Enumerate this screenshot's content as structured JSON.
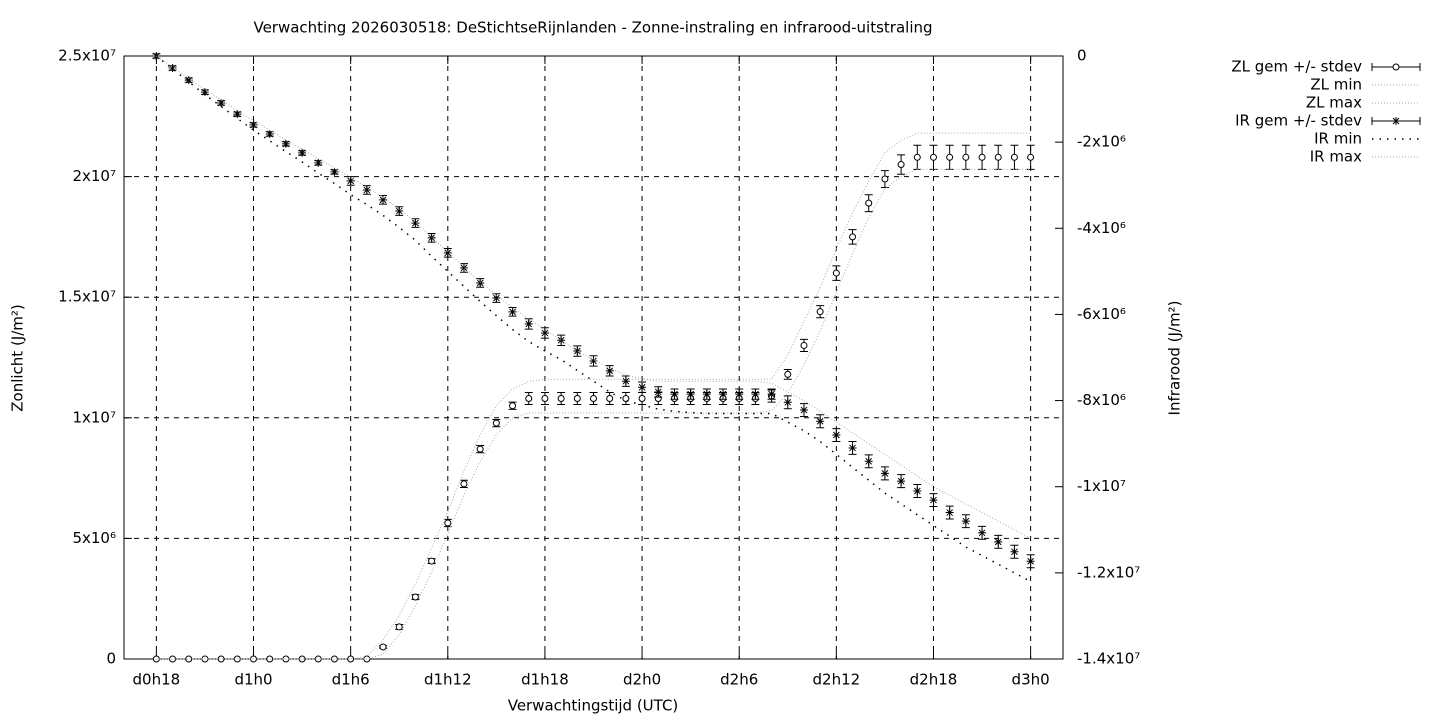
{
  "chart_data": {
    "type": "errorbar-line",
    "title": "Verwachting 2026030518: DeStichtseRijnlanden - Zonne-instraling en infrarood-uitstraling",
    "x_label": "Verwachtingstijd (UTC)",
    "y_label": "Zonlicht (J/m²)",
    "y2_label": "Infrarood (J/m²)",
    "xlim": [
      16,
      74
    ],
    "ylim": [
      0,
      25000000
    ],
    "y2lim": [
      -14000000,
      0
    ],
    "xticks": [
      {
        "value": 18,
        "label": "d0h18"
      },
      {
        "value": 24,
        "label": "d1h0"
      },
      {
        "value": 30,
        "label": "d1h6"
      },
      {
        "value": 36,
        "label": "d1h12"
      },
      {
        "value": 42,
        "label": "d1h18"
      },
      {
        "value": 48,
        "label": "d2h0"
      },
      {
        "value": 54,
        "label": "d2h6"
      },
      {
        "value": 60,
        "label": "d2h12"
      },
      {
        "value": 66,
        "label": "d2h18"
      },
      {
        "value": 72,
        "label": "d3h0"
      }
    ],
    "yticks": [
      0,
      {
        "value": 5000000,
        "label": "5x10⁶"
      },
      {
        "value": 10000000,
        "label": "1x10⁷"
      },
      {
        "value": 15000000,
        "label": "1.5x10⁷"
      },
      {
        "value": 20000000,
        "label": "2x10⁷"
      },
      {
        "value": 25000000,
        "label": "2.5x10⁷"
      }
    ],
    "y2ticks": [
      0,
      {
        "value": -2000000,
        "label": "-2x10⁶"
      },
      {
        "value": -4000000,
        "label": "-4x10⁶"
      },
      {
        "value": -6000000,
        "label": "-6x10⁶"
      },
      {
        "value": -8000000,
        "label": "-8x10⁶"
      },
      {
        "value": -10000000,
        "label": "-1x10⁷"
      },
      {
        "value": -12000000,
        "label": "-1.2x10⁷"
      },
      {
        "value": -14000000,
        "label": "-1.4x10⁷"
      }
    ],
    "grid": true,
    "legend": "top-right",
    "x": [
      18,
      19,
      20,
      21,
      22,
      23,
      24,
      25,
      26,
      27,
      28,
      29,
      30,
      31,
      32,
      33,
      34,
      35,
      36,
      37,
      38,
      39,
      40,
      41,
      42,
      43,
      44,
      45,
      46,
      47,
      48,
      49,
      50,
      51,
      52,
      53,
      54,
      55,
      56,
      57,
      58,
      59,
      60,
      61,
      62,
      63,
      64,
      65,
      66,
      67,
      68,
      69,
      70,
      71,
      72
    ],
    "series": [
      {
        "name": "ZL gem +/- stdev",
        "color": "#000000",
        "style": "circle",
        "values": [
          0,
          0,
          0,
          0,
          0,
          0,
          0,
          0,
          0,
          0,
          0,
          0,
          0,
          0,
          500000.0,
          1330000.0,
          2570000.0,
          4060000.0,
          5640000.0,
          7260000.0,
          8700000.0,
          9780000.0,
          10500000.0,
          10800000.0,
          10800000.0,
          10800000.0,
          10800000.0,
          10800000.0,
          10800000.0,
          10800000.0,
          10800000.0,
          10800000.0,
          10800000.0,
          10800000.0,
          10800000.0,
          10800000.0,
          10800000.0,
          10800000.0,
          10900000.0,
          11800000.0,
          13000000.0,
          14400000.0,
          16000000.0,
          17500000.0,
          18900000.0,
          19900000.0,
          20500000.0,
          20800000.0,
          20800000.0,
          20800000.0,
          20800000.0,
          20800000.0,
          20800000.0,
          20800000.0,
          20800000.0
        ],
        "errors": [
          0,
          0,
          0,
          0,
          0,
          0,
          0,
          0,
          0,
          0,
          0,
          0,
          0,
          0,
          50000.0,
          100000.0,
          100000.0,
          100000.0,
          150000.0,
          150000.0,
          150000.0,
          150000.0,
          150000.0,
          250000.0,
          250000.0,
          250000.0,
          250000.0,
          250000.0,
          250000.0,
          250000.0,
          250000.0,
          250000.0,
          250000.0,
          250000.0,
          250000.0,
          250000.0,
          250000.0,
          250000.0,
          250000.0,
          200000.0,
          250000.0,
          250000.0,
          300000.0,
          300000.0,
          350000.0,
          350000.0,
          400000.0,
          500000.0,
          500000.0,
          500000.0,
          500000.0,
          500000.0,
          500000.0,
          500000.0,
          500000.0
        ]
      },
      {
        "name": "ZL min",
        "color": "#aaaaaa",
        "style": "fine",
        "values": [
          0,
          0,
          0,
          0,
          0,
          0,
          0,
          0,
          0,
          0,
          0,
          0,
          0,
          0,
          200000.0,
          1000000.0,
          2200000.0,
          3600000.0,
          5200000.0,
          6800000.0,
          8200000.0,
          9300000.0,
          10000000.0,
          10200000.0,
          10200000.0,
          10200000.0,
          10200000.0,
          10200000.0,
          10200000.0,
          10200000.0,
          10200000.0,
          10200000.0,
          10200000.0,
          10200000.0,
          10200000.0,
          10200000.0,
          10200000.0,
          10200000.0,
          10300000.0,
          11000000.0,
          12200000.0,
          13600000.0,
          15200000.0,
          16800000.0,
          18300000.0,
          19500000.0,
          20000000.0,
          20300000.0,
          20300000.0,
          20300000.0,
          20300000.0,
          20300000.0,
          20300000.0,
          20300000.0,
          20300000.0
        ]
      },
      {
        "name": "ZL max",
        "color": "#aaaaaa",
        "style": "fine",
        "values": [
          0,
          0,
          0,
          0,
          0,
          0,
          0,
          0,
          0,
          0,
          0,
          0,
          0,
          100000.0,
          800000.0,
          1800000.0,
          3100000.0,
          4600000.0,
          6100000.0,
          7800000.0,
          9300000.0,
          10500000.0,
          11200000.0,
          11500000.0,
          11600000.0,
          11600000.0,
          11600000.0,
          11600000.0,
          11600000.0,
          11600000.0,
          11600000.0,
          11600000.0,
          11600000.0,
          11600000.0,
          11600000.0,
          11600000.0,
          11600000.0,
          11600000.0,
          11600000.0,
          12600000.0,
          14000000.0,
          15400000.0,
          17000000.0,
          18500000.0,
          19800000.0,
          21000000.0,
          21500000.0,
          21800000.0,
          21800000.0,
          21800000.0,
          21800000.0,
          21800000.0,
          21800000.0,
          21800000.0,
          21800000.0
        ]
      },
      {
        "name": "IR gem +/- stdev",
        "color": "#000000",
        "style": "star",
        "axis": "y2",
        "values": [
          0,
          -280000.0,
          -560000.0,
          -840000.0,
          -1090000.0,
          -1350000.0,
          -1600000.0,
          -1810000.0,
          -2040000.0,
          -2250000.0,
          -2480000.0,
          -2690000.0,
          -2900000.0,
          -3110000.0,
          -3340000.0,
          -3600000.0,
          -3880000.0,
          -4220000.0,
          -4570000.0,
          -4920000.0,
          -5270000.0,
          -5620000.0,
          -5940000.0,
          -6220000.0,
          -6430000.0,
          -6600000.0,
          -6850000.0,
          -7080000.0,
          -7310000.0,
          -7550000.0,
          -7690000.0,
          -7800000.0,
          -7850000.0,
          -7850000.0,
          -7850000.0,
          -7850000.0,
          -7850000.0,
          -7850000.0,
          -7850000.0,
          -8040000.0,
          -8220000.0,
          -8480000.0,
          -8800000.0,
          -9100000.0,
          -9410000.0,
          -9690000.0,
          -9870000.0,
          -10100000.0,
          -10310000.0,
          -10600000.0,
          -10800000.0,
          -11070000.0,
          -11280000.0,
          -11510000.0,
          -11730000.0
        ],
        "errors": [
          50000.0,
          50000.0,
          50000.0,
          50000.0,
          50000.0,
          50000.0,
          50000.0,
          50000.0,
          50000.0,
          50000.0,
          50000.0,
          50000.0,
          100000.0,
          100000.0,
          100000.0,
          100000.0,
          100000.0,
          100000.0,
          100000.0,
          100000.0,
          100000.0,
          100000.0,
          100000.0,
          120000.0,
          120000.0,
          120000.0,
          120000.0,
          120000.0,
          120000.0,
          120000.0,
          120000.0,
          120000.0,
          120000.0,
          120000.0,
          120000.0,
          120000.0,
          120000.0,
          120000.0,
          120000.0,
          150000.0,
          150000.0,
          150000.0,
          150000.0,
          150000.0,
          150000.0,
          150000.0,
          150000.0,
          150000.0,
          150000.0,
          150000.0,
          150000.0,
          150000.0,
          150000.0,
          150000.0,
          150000.0
        ]
      },
      {
        "name": "IR min",
        "color": "#000000",
        "style": "sparse",
        "axis": "y2",
        "values": [
          0,
          -300000.0,
          -600000.0,
          -900000.0,
          -1170000.0,
          -1450000.0,
          -1720000.0,
          -1970000.0,
          -2220000.0,
          -2460000.0,
          -2720000.0,
          -2960000.0,
          -3220000.0,
          -3450000.0,
          -3700000.0,
          -3980000.0,
          -4280000.0,
          -4650000.0,
          -5000000.0,
          -5350000.0,
          -5700000.0,
          -6030000.0,
          -6350000.0,
          -6630000.0,
          -6850000.0,
          -7050000.0,
          -7300000.0,
          -7550000.0,
          -7800000.0,
          -8000000.0,
          -8100000.0,
          -8200000.0,
          -8250000.0,
          -8280000.0,
          -8300000.0,
          -8300000.0,
          -8300000.0,
          -8300000.0,
          -8300000.0,
          -8500000.0,
          -8700000.0,
          -8950000.0,
          -9250000.0,
          -9550000.0,
          -9850000.0,
          -10150000.0,
          -10400000.0,
          -10650000.0,
          -10900000.0,
          -11150000.0,
          -11400000.0,
          -11600000.0,
          -11800000.0,
          -12000000.0,
          -12200000.0
        ]
      },
      {
        "name": "IR max",
        "color": "#aaaaaa",
        "style": "fine",
        "axis": "y2",
        "values": [
          0,
          -260000.0,
          -520000.0,
          -780000.0,
          -1020000.0,
          -1270000.0,
          -1500000.0,
          -1720000.0,
          -1950000.0,
          -2160000.0,
          -2380000.0,
          -2600000.0,
          -2820000.0,
          -3040000.0,
          -3280000.0,
          -3550000.0,
          -3850000.0,
          -4200000.0,
          -4550000.0,
          -4900000.0,
          -5250000.0,
          -5550000.0,
          -5850000.0,
          -6100000.0,
          -6350000.0,
          -6600000.0,
          -6850000.0,
          -7050000.0,
          -7250000.0,
          -7400000.0,
          -7500000.0,
          -7550000.0,
          -7550000.0,
          -7550000.0,
          -7550000.0,
          -7550000.0,
          -7550000.0,
          -7550000.0,
          -7600000.0,
          -7800000.0,
          -8000000.0,
          -8250000.0,
          -8500000.0,
          -8750000.0,
          -9000000.0,
          -9250000.0,
          -9500000.0,
          -9750000.0,
          -10000000.0,
          -10200000.0,
          -10400000.0,
          -10600000.0,
          -10800000.0,
          -11000000.0,
          -11200000.0
        ]
      }
    ]
  }
}
